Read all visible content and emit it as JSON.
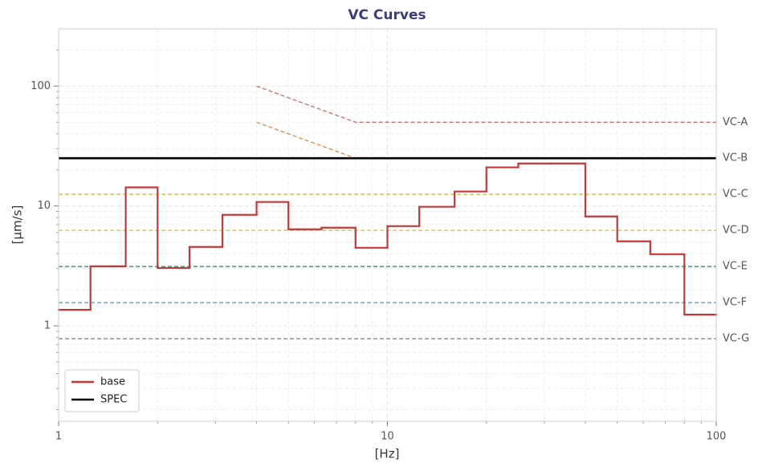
{
  "chart_data": {
    "type": "step-line",
    "title": "VC Curves",
    "x_label": "[Hz]",
    "y_label": "[µm/s]",
    "log_x": true,
    "log_y": true,
    "grid": true,
    "legend_position": "lower-left",
    "xlim": [
      1,
      100
    ],
    "ylim": [
      0.16,
      300
    ],
    "xticks": [
      1,
      10,
      100
    ],
    "yticks": [
      1,
      10,
      100
    ],
    "series": [
      {
        "name": "base",
        "color": "#c83737",
        "bins": [
          1,
          1.25,
          1.6,
          2,
          2.5,
          3.15,
          4,
          5,
          6.3,
          8,
          10,
          12.5,
          16,
          20,
          25,
          31.5,
          40,
          50,
          63,
          80,
          100
        ],
        "values": [
          1.36,
          3.14,
          14.3,
          3.04,
          4.55,
          8.43,
          10.8,
          6.39,
          6.59,
          4.48,
          6.79,
          9.85,
          13.2,
          21,
          22.6,
          22.6,
          8.18,
          5.07,
          3.96,
          1.24
        ]
      },
      {
        "name": "SPEC",
        "color": "#000000",
        "x": [
          1,
          100
        ],
        "values": [
          25,
          25
        ]
      }
    ],
    "reference_curves": [
      {
        "name": "VC-A",
        "color": "#d06a6a",
        "label_color": "#c8504f",
        "x": [
          4,
          8,
          100
        ],
        "values": [
          100,
          50,
          50
        ]
      },
      {
        "name": "VC-B",
        "color": "#d98a3d",
        "label_color": "#d47300",
        "x": [
          4,
          8,
          100
        ],
        "values": [
          50,
          25,
          25
        ]
      },
      {
        "name": "VC-C",
        "color": "#e8b33c",
        "label_color": "#e3a21a",
        "x": [
          1,
          100
        ],
        "values": [
          12.5,
          12.5
        ]
      },
      {
        "name": "VC-D",
        "color": "#e0c429",
        "label_color": "#d8b800",
        "x": [
          1,
          100
        ],
        "values": [
          6.25,
          6.25
        ]
      },
      {
        "name": "VC-E",
        "color": "#3f8a74",
        "label_color": "#2f6f5f",
        "x": [
          1,
          100
        ],
        "values": [
          3.125,
          3.125
        ]
      },
      {
        "name": "VC-F",
        "color": "#3f99c4",
        "label_color": "#2f8fbf",
        "x": [
          1,
          100
        ],
        "values": [
          1.5625,
          1.5625
        ]
      },
      {
        "name": "VC-G",
        "color": "#8a8a8a",
        "label_color": "#666666",
        "x": [
          1,
          100
        ],
        "values": [
          0.78,
          0.78
        ]
      }
    ]
  }
}
